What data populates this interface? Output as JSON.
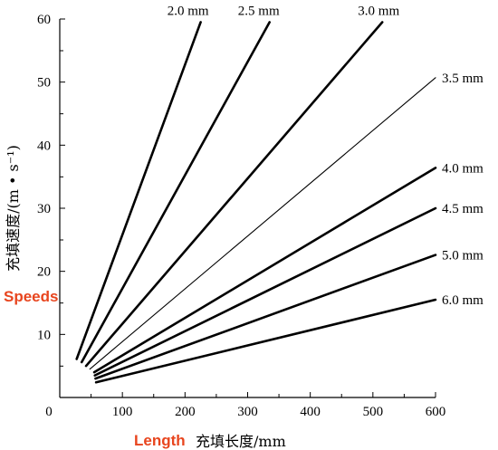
{
  "chart_data": {
    "type": "line",
    "xlabel": "充填长度/mm",
    "ylabel": "充填速度/(m • s⁻¹)",
    "xlim": [
      0,
      600
    ],
    "ylim": [
      0,
      60
    ],
    "x_ticks": [
      "0",
      "100",
      "200",
      "300",
      "400",
      "500",
      "600"
    ],
    "y_ticks": [
      "10",
      "20",
      "30",
      "40",
      "50",
      "60"
    ],
    "grid": false,
    "annotations": {
      "x_axis": "Length",
      "y_axis": "Speeds"
    },
    "series": [
      {
        "name": "2.0 mm",
        "x": [
          27,
          225
        ],
        "y": [
          6.1,
          59.5
        ]
      },
      {
        "name": "2.5 mm",
        "x": [
          35,
          335
        ],
        "y": [
          5.6,
          59.5
        ]
      },
      {
        "name": "3.0 mm",
        "x": [
          42,
          515
        ],
        "y": [
          5.0,
          59.5
        ]
      },
      {
        "name": "3.5 mm",
        "x": [
          48,
          600
        ],
        "y": [
          4.5,
          50.7
        ]
      },
      {
        "name": "4.0 mm",
        "x": [
          55,
          600
        ],
        "y": [
          4.0,
          36.4
        ]
      },
      {
        "name": "4.5 mm",
        "x": [
          56,
          600
        ],
        "y": [
          3.5,
          30.0
        ]
      },
      {
        "name": "5.0 mm",
        "x": [
          57,
          600
        ],
        "y": [
          3.0,
          22.6
        ]
      },
      {
        "name": "6.0 mm",
        "x": [
          58,
          600
        ],
        "y": [
          2.4,
          15.5
        ]
      }
    ]
  }
}
